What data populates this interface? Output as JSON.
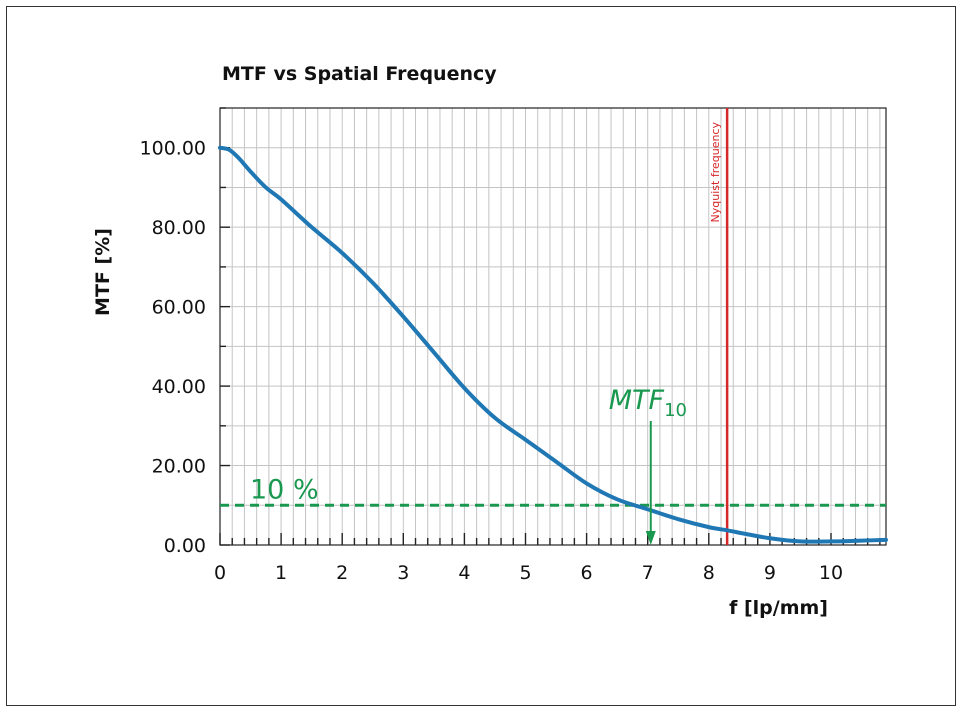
{
  "chart_data": {
    "type": "line",
    "title": "MTF vs Spatial Frequency",
    "xlabel": "f [lp/mm]",
    "ylabel": "MTF [%]",
    "xlim": [
      0,
      10.9
    ],
    "ylim": [
      0,
      110
    ],
    "x_ticks": [
      "0",
      "1",
      "2",
      "3",
      "4",
      "5",
      "6",
      "7",
      "8",
      "9",
      "10"
    ],
    "y_ticks": [
      "0.00",
      "20.00",
      "40.00",
      "60.00",
      "80.00",
      "100.00"
    ],
    "grid": true,
    "series": [
      {
        "color": "#1f77b4",
        "x": [
          0,
          0.15,
          0.3,
          0.5,
          0.75,
          1.0,
          1.5,
          2.0,
          2.5,
          3.0,
          3.5,
          4.0,
          4.5,
          5.0,
          5.5,
          6.0,
          6.5,
          7.0,
          7.5,
          8.0,
          8.3,
          8.6,
          9.0,
          9.5,
          10.0,
          10.5,
          10.9
        ],
        "y": [
          100,
          99.5,
          97.5,
          94,
          90,
          87,
          80,
          73.5,
          66,
          57.5,
          48.5,
          39.5,
          32,
          26.5,
          21,
          15.5,
          11.5,
          9,
          6.5,
          4.5,
          3.7,
          2.8,
          1.7,
          0.9,
          0.9,
          1.1,
          1.3
        ]
      }
    ],
    "annotations": {
      "nyquist": {
        "label": "Nyquist frequency",
        "x": 8.3,
        "color": "#d62728"
      },
      "threshold": {
        "label": "10 %",
        "y": 10,
        "color": "#1a9850"
      },
      "mtf10": {
        "label": "MTF",
        "subscript": "10",
        "x": 7.05,
        "color": "#1a9850"
      }
    }
  }
}
